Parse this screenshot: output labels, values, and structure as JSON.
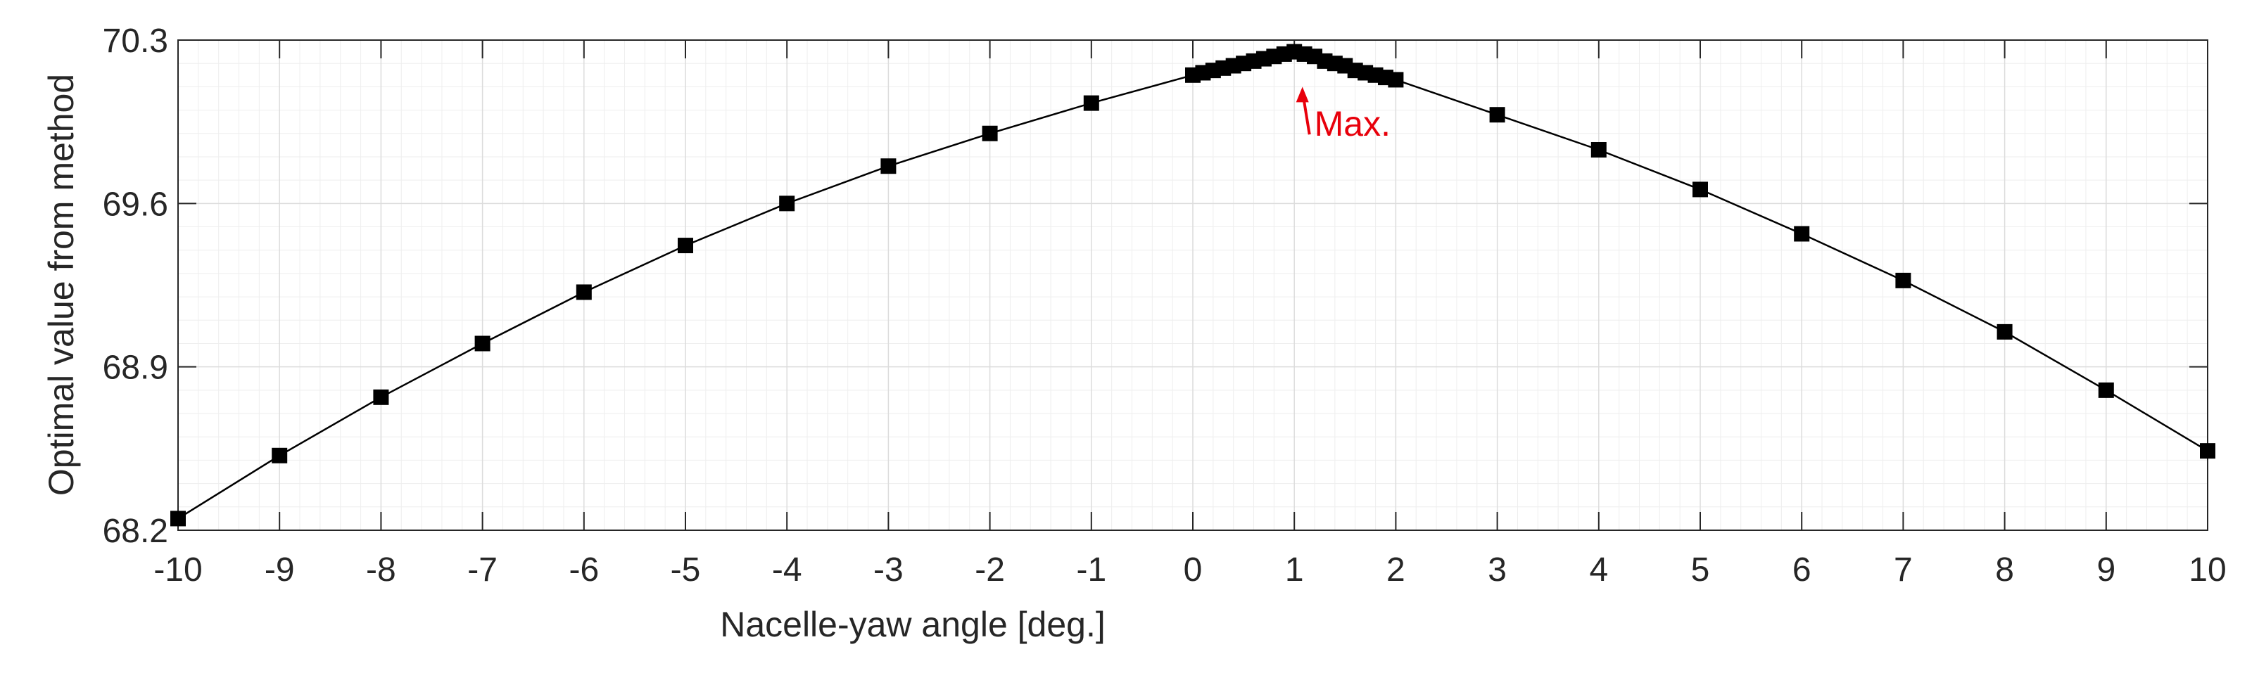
{
  "chart_data": {
    "type": "line",
    "title": "",
    "xlabel": "Nacelle-yaw angle [deg.]",
    "ylabel": "Optimal value from method",
    "xlim": [
      -10,
      10
    ],
    "ylim": [
      68.2,
      70.3
    ],
    "xticks": [
      -10,
      -9,
      -8,
      -7,
      -6,
      -5,
      -4,
      -3,
      -2,
      -1,
      0,
      1,
      2,
      3,
      4,
      5,
      6,
      7,
      8,
      9,
      10
    ],
    "xtick_labels": [
      "-10",
      "-9",
      "-8",
      "-7",
      "-6",
      "-5",
      "-4",
      "-3",
      "-2",
      "-1",
      "0",
      "1",
      "2",
      "3",
      "4",
      "5",
      "6",
      "7",
      "8",
      "9",
      "10"
    ],
    "yticks": [
      68.2,
      68.9,
      69.6,
      70.3
    ],
    "ytick_labels": [
      "68.2",
      "68.9",
      "69.6",
      "70.3"
    ],
    "grid": true,
    "minor_grid": true,
    "line_color": "#000000",
    "marker": "square",
    "series": [
      {
        "x": [
          -10,
          -9,
          -8,
          -7,
          -6,
          -5,
          -4,
          -3,
          -2,
          -1,
          0,
          0.1,
          0.2,
          0.3,
          0.4,
          0.5,
          0.6,
          0.7,
          0.8,
          0.9,
          1.0,
          1.1,
          1.2,
          1.3,
          1.4,
          1.5,
          1.6,
          1.7,
          1.8,
          1.9,
          2,
          3,
          4,
          5,
          6,
          7,
          8,
          9,
          10
        ],
        "y": [
          68.25,
          68.52,
          68.77,
          69.0,
          69.22,
          69.42,
          69.6,
          69.76,
          69.9,
          70.03,
          70.15,
          70.16,
          70.17,
          70.18,
          70.19,
          70.2,
          70.21,
          70.22,
          70.23,
          70.24,
          70.25,
          70.24,
          70.23,
          70.21,
          70.2,
          70.19,
          70.17,
          70.16,
          70.15,
          70.14,
          70.13,
          69.98,
          69.83,
          69.66,
          69.47,
          69.27,
          69.05,
          68.8,
          68.54
        ]
      }
    ],
    "annotation": {
      "text": "Max.",
      "x": 1.1,
      "y": 69.95,
      "arrow_to_x": 1.08,
      "arrow_to_y": 70.1,
      "color": "#e8000b"
    }
  }
}
